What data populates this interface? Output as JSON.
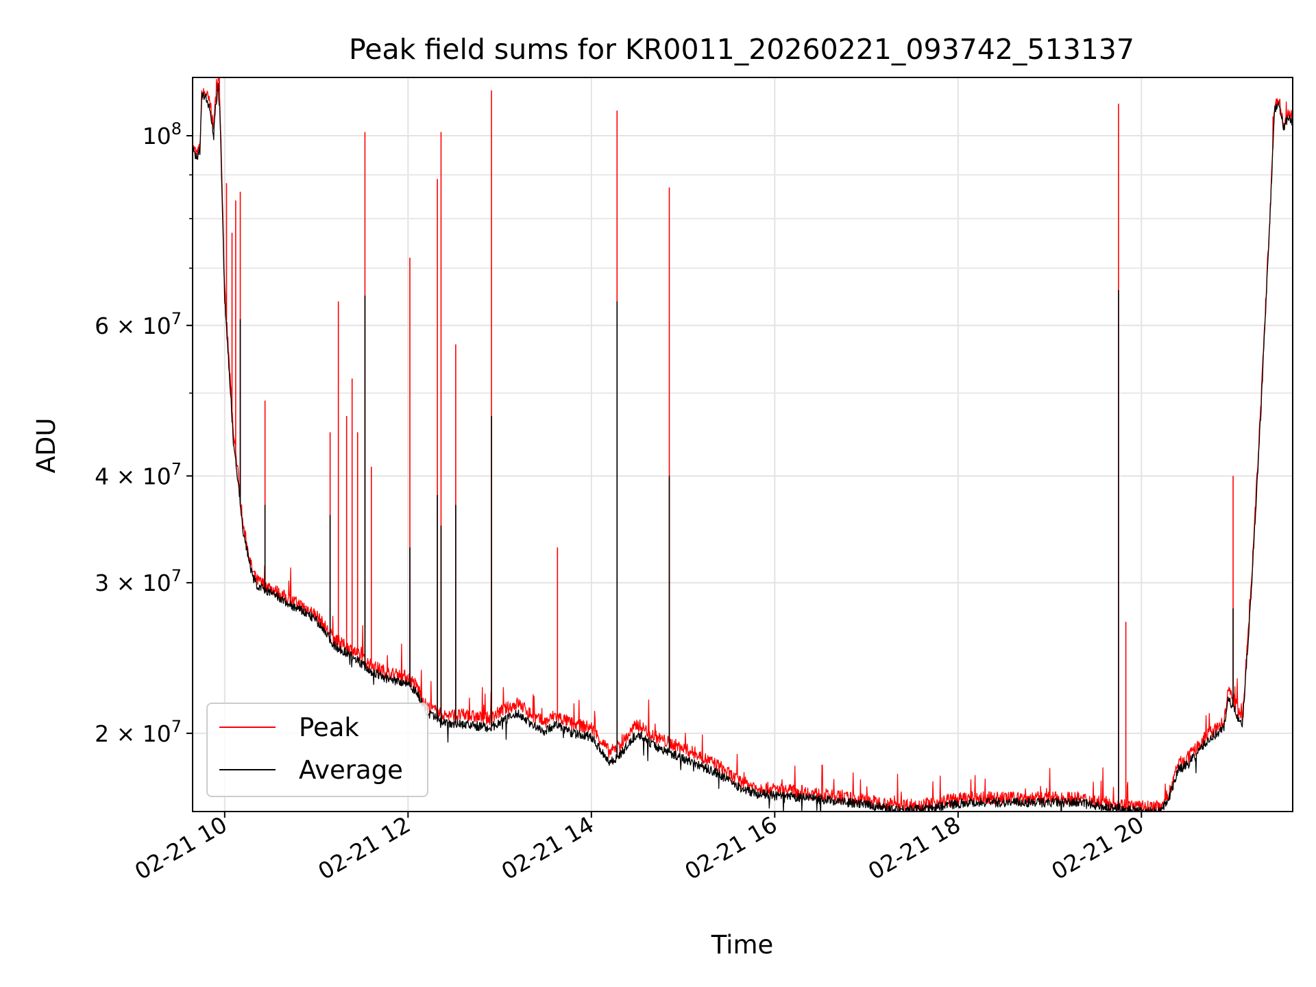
{
  "chart_data": {
    "type": "line",
    "title": "Peak field sums for KR0011_20260221_093742_513137",
    "xlabel": "Time",
    "ylabel": "ADU",
    "yscale": "log",
    "xlim": [
      9.65,
      21.65
    ],
    "ylim": [
      16200000,
      117000000
    ],
    "grid": true,
    "legend_position": "lower-left",
    "x_ticks": [
      {
        "value": 10,
        "label": "02-21 10"
      },
      {
        "value": 12,
        "label": "02-21 12"
      },
      {
        "value": 14,
        "label": "02-21 14"
      },
      {
        "value": 16,
        "label": "02-21 16"
      },
      {
        "value": 18,
        "label": "02-21 18"
      },
      {
        "value": 20,
        "label": "02-21 20"
      }
    ],
    "y_major_ticks": [
      {
        "value": 100000000,
        "base": "10",
        "exp": "8"
      },
      {
        "value": 60000000,
        "base": "6 × 10",
        "exp": "7"
      },
      {
        "value": 40000000,
        "base": "4 × 10",
        "exp": "7"
      },
      {
        "value": 30000000,
        "base": "3 × 10",
        "exp": "7"
      },
      {
        "value": 20000000,
        "base": "2 × 10",
        "exp": "7"
      }
    ],
    "y_minor_ticks": [
      90000000,
      80000000,
      70000000,
      50000000
    ],
    "series": [
      {
        "name": "Peak",
        "color": "#ff0000",
        "x": [
          9.65,
          9.7,
          9.73,
          9.75,
          9.8,
          9.85,
          9.88,
          9.9,
          9.93,
          9.95,
          9.97,
          10.0,
          10.05,
          10.1,
          10.15,
          10.2,
          10.3,
          10.35,
          10.4,
          10.5,
          10.7,
          10.9,
          11.0,
          11.1,
          11.2,
          11.4,
          11.6,
          11.8,
          12.0,
          12.1,
          12.2,
          12.4,
          12.6,
          12.9,
          13.0,
          13.2,
          13.4,
          13.5,
          13.6,
          13.8,
          14.0,
          14.2,
          14.3,
          14.5,
          14.7,
          14.9,
          15.1,
          15.4,
          15.6,
          15.8,
          16.0,
          16.3,
          16.6,
          17.0,
          17.3,
          17.6,
          17.9,
          18.1,
          18.5,
          18.9,
          19.3,
          19.6,
          19.8,
          20.0,
          20.2,
          20.3,
          20.4,
          20.5,
          20.6,
          20.7,
          20.8,
          20.9,
          20.95,
          21.0,
          21.1,
          21.2,
          21.3,
          21.4,
          21.45,
          21.5,
          21.55,
          21.6,
          21.65
        ],
        "y": [
          97000000,
          95000000,
          97000000,
          112000000,
          112000000,
          108000000,
          102000000,
          110000000,
          118000000,
          108000000,
          90000000,
          66000000,
          54000000,
          44000000,
          40000000,
          35000000,
          31000000,
          30200000,
          30000000,
          29600000,
          28700000,
          28000000,
          27500000,
          26600000,
          25700000,
          25000000,
          24000000,
          23500000,
          23300000,
          22700000,
          21500000,
          21000000,
          21000000,
          20800000,
          21200000,
          21700000,
          20800000,
          20600000,
          21000000,
          20500000,
          20300000,
          19000000,
          19300000,
          20500000,
          19800000,
          19400000,
          19000000,
          18300000,
          17600000,
          17300000,
          17200000,
          17100000,
          16900000,
          16700000,
          16500000,
          16500000,
          16700000,
          16800000,
          16800000,
          16800000,
          16800000,
          16600000,
          16500000,
          16400000,
          16400000,
          17000000,
          18400000,
          18700000,
          19200000,
          19800000,
          20200000,
          20600000,
          22500000,
          22000000,
          20700000,
          30000000,
          48000000,
          80000000,
          108000000,
          110000000,
          103000000,
          106000000,
          105000000
        ],
        "spikes": [
          {
            "x": 9.94,
            "y": 117000000
          },
          {
            "x": 10.02,
            "y": 88000000
          },
          {
            "x": 10.08,
            "y": 77000000
          },
          {
            "x": 10.12,
            "y": 84000000
          },
          {
            "x": 10.17,
            "y": 86000000
          },
          {
            "x": 10.44,
            "y": 49000000
          },
          {
            "x": 11.15,
            "y": 45000000
          },
          {
            "x": 11.24,
            "y": 64000000
          },
          {
            "x": 11.33,
            "y": 47000000
          },
          {
            "x": 11.39,
            "y": 52000000
          },
          {
            "x": 11.45,
            "y": 45000000
          },
          {
            "x": 11.53,
            "y": 101000000
          },
          {
            "x": 11.6,
            "y": 41000000
          },
          {
            "x": 12.02,
            "y": 72000000
          },
          {
            "x": 12.32,
            "y": 89000000
          },
          {
            "x": 12.36,
            "y": 101000000
          },
          {
            "x": 12.52,
            "y": 57000000
          },
          {
            "x": 12.91,
            "y": 113000000
          },
          {
            "x": 13.63,
            "y": 33000000
          },
          {
            "x": 14.28,
            "y": 107000000
          },
          {
            "x": 14.85,
            "y": 87000000
          },
          {
            "x": 19.75,
            "y": 109000000
          },
          {
            "x": 19.83,
            "y": 27000000
          },
          {
            "x": 21.0,
            "y": 40000000
          }
        ]
      },
      {
        "name": "Average",
        "color": "#000000",
        "x": [
          9.65,
          9.7,
          9.73,
          9.75,
          9.8,
          9.85,
          9.88,
          9.9,
          9.93,
          9.95,
          9.97,
          10.0,
          10.05,
          10.1,
          10.15,
          10.2,
          10.3,
          10.35,
          10.4,
          10.5,
          10.7,
          10.9,
          11.0,
          11.1,
          11.2,
          11.4,
          11.6,
          11.8,
          12.0,
          12.1,
          12.2,
          12.4,
          12.6,
          12.9,
          13.0,
          13.2,
          13.4,
          13.5,
          13.6,
          13.8,
          14.0,
          14.2,
          14.3,
          14.5,
          14.7,
          14.9,
          15.1,
          15.4,
          15.6,
          15.8,
          16.0,
          16.3,
          16.6,
          17.0,
          17.3,
          17.6,
          17.9,
          18.1,
          18.5,
          18.9,
          19.3,
          19.6,
          19.8,
          20.0,
          20.2,
          20.3,
          20.4,
          20.5,
          20.6,
          20.7,
          20.8,
          20.9,
          20.95,
          21.0,
          21.1,
          21.2,
          21.3,
          21.4,
          21.45,
          21.5,
          21.55,
          21.6,
          21.65
        ],
        "y": [
          96000000,
          94500000,
          96000000,
          111000000,
          111000000,
          106000000,
          100000000,
          108000000,
          114000000,
          105000000,
          86000000,
          64000000,
          53000000,
          43000000,
          39000000,
          34500000,
          30600000,
          29800000,
          29600000,
          29200000,
          28300000,
          27600000,
          27100000,
          26200000,
          25300000,
          24600000,
          23600000,
          23100000,
          22900000,
          22300000,
          21100000,
          20600000,
          20500000,
          20300000,
          20600000,
          21100000,
          20300000,
          20100000,
          20500000,
          20000000,
          19800000,
          18500000,
          18800000,
          20000000,
          19300000,
          18900000,
          18500000,
          17900000,
          17300000,
          17000000,
          16900000,
          16800000,
          16700000,
          16500000,
          16300000,
          16300000,
          16500000,
          16600000,
          16600000,
          16600000,
          16600000,
          16400000,
          16300000,
          16200000,
          16200000,
          16800000,
          18100000,
          18400000,
          18900000,
          19500000,
          19900000,
          20300000,
          22000000,
          21500000,
          20300000,
          29500000,
          47000000,
          79000000,
          107000000,
          109000000,
          102000000,
          105000000,
          104000000
        ],
        "spikes": [
          {
            "x": 10.17,
            "y": 61000000
          },
          {
            "x": 10.44,
            "y": 37000000
          },
          {
            "x": 11.15,
            "y": 36000000
          },
          {
            "x": 11.53,
            "y": 65000000
          },
          {
            "x": 12.02,
            "y": 33000000
          },
          {
            "x": 12.32,
            "y": 38000000
          },
          {
            "x": 12.36,
            "y": 35000000
          },
          {
            "x": 12.52,
            "y": 37000000
          },
          {
            "x": 12.91,
            "y": 47000000
          },
          {
            "x": 14.28,
            "y": 64000000
          },
          {
            "x": 14.85,
            "y": 40000000
          },
          {
            "x": 19.75,
            "y": 66000000
          },
          {
            "x": 21.0,
            "y": 28000000
          }
        ]
      }
    ]
  }
}
